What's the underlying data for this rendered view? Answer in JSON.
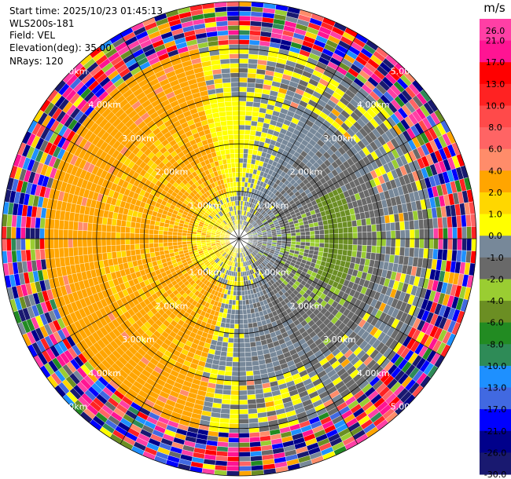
{
  "info": {
    "start_time": "Start time: 2025/10/23 01:45:13",
    "site": "WLS200s-181",
    "field": "Field: VEL",
    "elevation": "Elevation(deg): 35.00",
    "nrays": "NRays: 120"
  },
  "colorbar": {
    "unit": "m/s",
    "ticks": [
      "26.0",
      "21.0",
      "17.0",
      "13.0",
      "10.0",
      "8.0",
      "6.0",
      "4.0",
      "2.0",
      "1.0",
      "0.0",
      "-1.0",
      "-2.0",
      "-4.0",
      "-6.0",
      "-8.0",
      "-10.0",
      "-13.0",
      "-17.0",
      "-21.0",
      "-26.0",
      "-30.0"
    ],
    "colors": [
      "#ff3fa5",
      "#ff1493",
      "#ff0000",
      "#ff2222",
      "#ff4a4a",
      "#ff6464",
      "#ff8c6a",
      "#ffa500",
      "#ffd700",
      "#ffff00",
      "#778899",
      "#696969",
      "#9acd32",
      "#6b8e23",
      "#228b22",
      "#2e8b57",
      "#1e90ff",
      "#4169e1",
      "#0000ff",
      "#00008b",
      "#191970"
    ]
  },
  "chart_data": {
    "type": "ppi",
    "field": "VEL",
    "units": "m/s",
    "elevation_deg": 35.0,
    "nrays": 120,
    "max_range_km": 5.0,
    "range_rings_km": [
      1.0,
      2.0,
      3.0,
      4.0,
      5.0
    ],
    "ring_labels": [
      "1.00km",
      "2.00km",
      "3.00km",
      "4.00km",
      "5.00km"
    ],
    "spoke_angles_deg": [
      0,
      30,
      60,
      90,
      120,
      150,
      180,
      210,
      240,
      270,
      300,
      330
    ],
    "regions": [
      {
        "range_km": [
          0.0,
          1.0
        ],
        "description": "near-zero mixed",
        "dominant_velocity": [
          0.0,
          -1.0,
          1.0
        ]
      },
      {
        "range_km": [
          1.0,
          3.0
        ],
        "west": 1.0,
        "east": -2.0,
        "north": 0.0,
        "south": 0.0
      },
      {
        "range_km": [
          3.0,
          4.1
        ],
        "west": 2.0,
        "east": -1.0
      },
      {
        "range_km": [
          4.1,
          5.0
        ],
        "description": "noise (random velocities)"
      }
    ]
  }
}
